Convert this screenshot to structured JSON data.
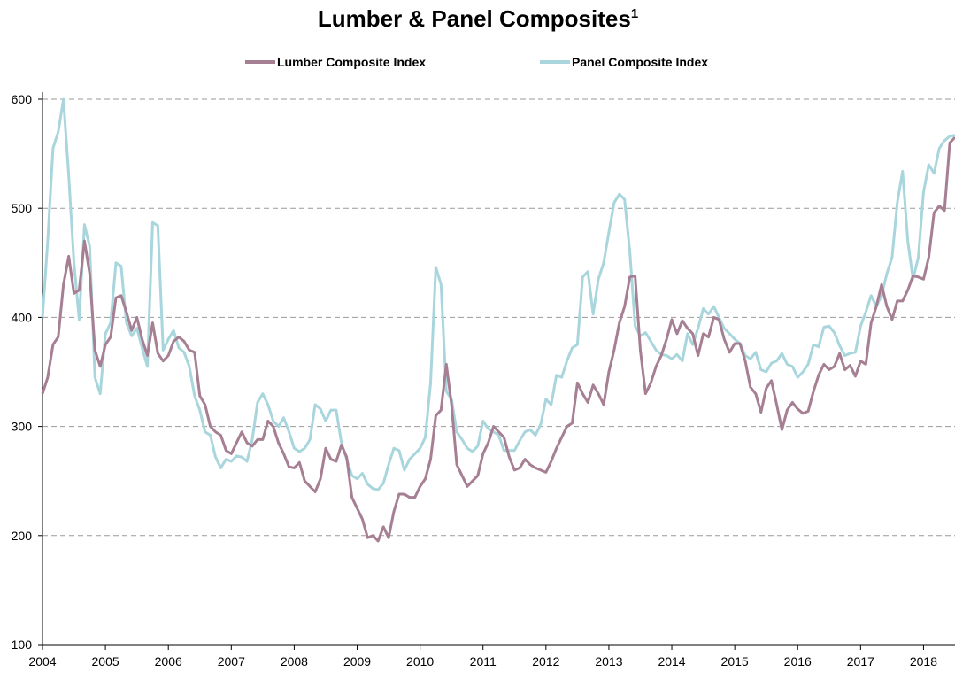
{
  "chart_data": {
    "type": "line",
    "title": "Lumber & Panel Composites",
    "title_superscript": "1",
    "x": [
      2004,
      2004.083,
      2004.167,
      2004.25,
      2004.333,
      2004.417,
      2004.5,
      2004.583,
      2004.667,
      2004.75,
      2004.833,
      2004.917,
      2005,
      2005.083,
      2005.167,
      2005.25,
      2005.333,
      2005.417,
      2005.5,
      2005.583,
      2005.667,
      2005.75,
      2005.833,
      2005.917,
      2006,
      2006.083,
      2006.167,
      2006.25,
      2006.333,
      2006.417,
      2006.5,
      2006.583,
      2006.667,
      2006.75,
      2006.833,
      2006.917,
      2007,
      2007.083,
      2007.167,
      2007.25,
      2007.333,
      2007.417,
      2007.5,
      2007.583,
      2007.667,
      2007.75,
      2007.833,
      2007.917,
      2008,
      2008.083,
      2008.167,
      2008.25,
      2008.333,
      2008.417,
      2008.5,
      2008.583,
      2008.667,
      2008.75,
      2008.833,
      2008.917,
      2009,
      2009.083,
      2009.167,
      2009.25,
      2009.333,
      2009.417,
      2009.5,
      2009.583,
      2009.667,
      2009.75,
      2009.833,
      2009.917,
      2010,
      2010.083,
      2010.167,
      2010.25,
      2010.333,
      2010.417,
      2010.5,
      2010.583,
      2010.667,
      2010.75,
      2010.833,
      2010.917,
      2011,
      2011.083,
      2011.167,
      2011.25,
      2011.333,
      2011.417,
      2011.5,
      2011.583,
      2011.667,
      2011.75,
      2011.833,
      2011.917,
      2012,
      2012.083,
      2012.167,
      2012.25,
      2012.333,
      2012.417,
      2012.5,
      2012.583,
      2012.667,
      2012.75,
      2012.833,
      2012.917,
      2013,
      2013.083,
      2013.167,
      2013.25,
      2013.333,
      2013.417,
      2013.5,
      2013.583,
      2013.667,
      2013.75,
      2013.833,
      2013.917,
      2014,
      2014.083,
      2014.167,
      2014.25,
      2014.333,
      2014.417,
      2014.5,
      2014.583,
      2014.667,
      2014.75,
      2014.833,
      2014.917,
      2015,
      2015.083,
      2015.167,
      2015.25,
      2015.333,
      2015.417,
      2015.5,
      2015.583,
      2015.667,
      2015.75,
      2015.833,
      2015.917,
      2016,
      2016.083,
      2016.167,
      2016.25,
      2016.333,
      2016.417,
      2016.5,
      2016.583,
      2016.667,
      2016.75,
      2016.833,
      2016.917,
      2017,
      2017.083,
      2017.167,
      2017.25,
      2017.333,
      2017.417,
      2017.5,
      2017.583,
      2017.667,
      2017.75,
      2017.833,
      2017.917,
      2018,
      2018.083,
      2018.167,
      2018.25,
      2018.333,
      2018.417,
      2018.5
    ],
    "series": [
      {
        "name": "Lumber Composite Index",
        "color": "#a67f93",
        "values": [
          330,
          345,
          375,
          382,
          430,
          456,
          422,
          425,
          470,
          440,
          370,
          355,
          375,
          382,
          418,
          420,
          405,
          388,
          400,
          380,
          365,
          395,
          367,
          360,
          365,
          378,
          382,
          378,
          370,
          368,
          328,
          320,
          300,
          295,
          292,
          278,
          275,
          285,
          295,
          285,
          282,
          288,
          288,
          305,
          300,
          285,
          275,
          263,
          262,
          267,
          250,
          245,
          240,
          252,
          280,
          270,
          268,
          283,
          272,
          235,
          225,
          215,
          198,
          200,
          195,
          208,
          198,
          222,
          238,
          238,
          235,
          235,
          245,
          252,
          270,
          310,
          315,
          357,
          320,
          265,
          255,
          245,
          250,
          255,
          275,
          285,
          300,
          295,
          290,
          272,
          260,
          262,
          270,
          265,
          262,
          260,
          258,
          268,
          280,
          290,
          300,
          303,
          340,
          330,
          322,
          338,
          330,
          320,
          350,
          370,
          395,
          410,
          437,
          438,
          370,
          330,
          340,
          355,
          365,
          380,
          398,
          385,
          397,
          390,
          385,
          365,
          385,
          382,
          400,
          398,
          380,
          368,
          376,
          376,
          360,
          336,
          330,
          313,
          335,
          342,
          320,
          297,
          315,
          322,
          316,
          312,
          314,
          332,
          347,
          357,
          352,
          355,
          367,
          352,
          356,
          346,
          360,
          357,
          395,
          410,
          430,
          410,
          398,
          415,
          415,
          425,
          438,
          437,
          435,
          455,
          496,
          502,
          498,
          560,
          565
        ]
      },
      {
        "name": "Panel Composite Index",
        "color": "#a9d6dd",
        "values": [
          400,
          470,
          555,
          570,
          600,
          530,
          450,
          398,
          485,
          465,
          345,
          330,
          385,
          395,
          450,
          447,
          395,
          383,
          390,
          372,
          355,
          487,
          484,
          370,
          380,
          388,
          372,
          368,
          355,
          328,
          315,
          295,
          292,
          272,
          262,
          270,
          268,
          273,
          272,
          268,
          288,
          322,
          330,
          320,
          305,
          300,
          308,
          295,
          280,
          277,
          280,
          288,
          320,
          316,
          305,
          315,
          315,
          285,
          270,
          255,
          252,
          257,
          247,
          243,
          242,
          248,
          265,
          280,
          278,
          260,
          270,
          275,
          280,
          290,
          340,
          446,
          430,
          332,
          325,
          295,
          288,
          280,
          277,
          282,
          305,
          298,
          295,
          292,
          278,
          278,
          278,
          287,
          295,
          297,
          292,
          302,
          325,
          320,
          347,
          345,
          360,
          372,
          375,
          437,
          442,
          403,
          435,
          450,
          478,
          505,
          513,
          508,
          460,
          392,
          383,
          386,
          378,
          370,
          366,
          365,
          362,
          366,
          360,
          385,
          375,
          390,
          408,
          403,
          410,
          400,
          390,
          385,
          380,
          376,
          365,
          362,
          368,
          352,
          350,
          358,
          360,
          367,
          357,
          355,
          345,
          350,
          357,
          375,
          373,
          391,
          392,
          386,
          374,
          365,
          367,
          368,
          392,
          405,
          420,
          410,
          420,
          440,
          455,
          505,
          534,
          470,
          435,
          455,
          515,
          540,
          532,
          555,
          562,
          566,
          567
        ]
      }
    ],
    "xlim": [
      2004,
      2018.5
    ],
    "xticks": [
      2004,
      2005,
      2006,
      2007,
      2008,
      2009,
      2010,
      2011,
      2012,
      2013,
      2014,
      2015,
      2016,
      2017,
      2018
    ],
    "ylim": [
      100,
      600
    ],
    "yticks": [
      100,
      200,
      300,
      400,
      500,
      600
    ],
    "grid": true
  }
}
